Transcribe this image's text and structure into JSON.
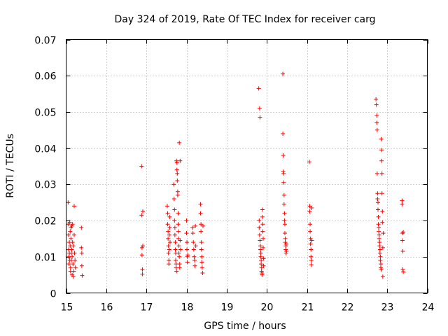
{
  "chart_data": {
    "type": "scatter",
    "title": "Day 324 of 2019, Rate Of TEC Index for receiver carg",
    "xlabel": "GPS time / hours",
    "ylabel": "ROTI / TECUs",
    "xlim": [
      15,
      24
    ],
    "ylim": [
      0,
      0.07
    ],
    "x_ticks": [
      15,
      16,
      17,
      18,
      19,
      20,
      21,
      22,
      23,
      24
    ],
    "x_tick_labels": [
      "15",
      "16",
      "17",
      "18",
      "19",
      "20",
      "21",
      "22",
      "23",
      "24"
    ],
    "y_ticks": [
      0,
      0.01,
      0.02,
      0.03,
      0.04,
      0.05,
      0.06,
      0.07
    ],
    "y_tick_labels": [
      "0",
      "0.01",
      "0.02",
      "0.03",
      "0.04",
      "0.05",
      "0.06",
      "0.07"
    ],
    "grid": true,
    "marker": "+",
    "color": "#ff0000",
    "series": [
      {
        "name": "ROTI",
        "points": [
          [
            15.05,
            0.025
          ],
          [
            15.05,
            0.019
          ],
          [
            15.06,
            0.016
          ],
          [
            15.06,
            0.012
          ],
          [
            15.07,
            0.01
          ],
          [
            15.07,
            0.008
          ],
          [
            15.08,
            0.014
          ],
          [
            15.08,
            0.011
          ],
          [
            15.09,
            0.009
          ],
          [
            15.09,
            0.0195
          ],
          [
            15.1,
            0.017
          ],
          [
            15.1,
            0.013
          ],
          [
            15.11,
            0.007
          ],
          [
            15.11,
            0.006
          ],
          [
            15.12,
            0.018
          ],
          [
            15.12,
            0.015
          ],
          [
            15.13,
            0.011
          ],
          [
            15.13,
            0.009
          ],
          [
            15.14,
            0.0185
          ],
          [
            15.14,
            0.012
          ],
          [
            15.15,
            0.01
          ],
          [
            15.15,
            0.005
          ],
          [
            15.16,
            0.019
          ],
          [
            15.16,
            0.014
          ],
          [
            15.17,
            0.008
          ],
          [
            15.18,
            0.0045
          ],
          [
            15.18,
            0.013
          ],
          [
            15.19,
            0.006
          ],
          [
            15.2,
            0.024
          ],
          [
            15.2,
            0.016
          ],
          [
            15.21,
            0.011
          ],
          [
            15.22,
            0.009
          ],
          [
            15.23,
            0.007
          ],
          [
            15.38,
            0.018
          ],
          [
            15.38,
            0.0125
          ],
          [
            15.39,
            0.011
          ],
          [
            15.39,
            0.0075
          ],
          [
            15.4,
            0.0048
          ],
          [
            16.88,
            0.035
          ],
          [
            16.88,
            0.0215
          ],
          [
            16.89,
            0.0125
          ],
          [
            16.89,
            0.0105
          ],
          [
            16.9,
            0.0065
          ],
          [
            16.9,
            0.0052
          ],
          [
            16.91,
            0.0225
          ],
          [
            16.91,
            0.013
          ],
          [
            17.52,
            0.024
          ],
          [
            17.53,
            0.022
          ],
          [
            17.53,
            0.019
          ],
          [
            17.54,
            0.017
          ],
          [
            17.54,
            0.015
          ],
          [
            17.55,
            0.013
          ],
          [
            17.55,
            0.011
          ],
          [
            17.56,
            0.009
          ],
          [
            17.56,
            0.008
          ],
          [
            17.57,
            0.012
          ],
          [
            17.57,
            0.016
          ],
          [
            17.58,
            0.018
          ],
          [
            17.58,
            0.021
          ],
          [
            17.59,
            0.014
          ],
          [
            17.68,
            0.03
          ],
          [
            17.69,
            0.026
          ],
          [
            17.7,
            0.023
          ],
          [
            17.7,
            0.02
          ],
          [
            17.71,
            0.018
          ],
          [
            17.71,
            0.016
          ],
          [
            17.72,
            0.014
          ],
          [
            17.72,
            0.012
          ],
          [
            17.73,
            0.011
          ],
          [
            17.73,
            0.009
          ],
          [
            17.74,
            0.008
          ],
          [
            17.74,
            0.007
          ],
          [
            17.75,
            0.006
          ],
          [
            17.75,
            0.0365
          ],
          [
            17.76,
            0.036
          ],
          [
            17.76,
            0.034
          ],
          [
            17.77,
            0.033
          ],
          [
            17.77,
            0.031
          ],
          [
            17.78,
            0.028
          ],
          [
            17.78,
            0.027
          ],
          [
            17.79,
            0.022
          ],
          [
            17.79,
            0.019
          ],
          [
            17.8,
            0.017
          ],
          [
            17.8,
            0.015
          ],
          [
            17.81,
            0.013
          ],
          [
            17.81,
            0.011
          ],
          [
            17.82,
            0.0415
          ],
          [
            17.82,
            0.01
          ],
          [
            17.83,
            0.008
          ],
          [
            17.83,
            0.007
          ],
          [
            17.84,
            0.0365
          ],
          [
            17.84,
            0.0145
          ],
          [
            17.85,
            0.012
          ],
          [
            18.0,
            0.02
          ],
          [
            18.0,
            0.0165
          ],
          [
            18.01,
            0.014
          ],
          [
            18.01,
            0.012
          ],
          [
            18.02,
            0.01
          ],
          [
            18.02,
            0.0085
          ],
          [
            18.03,
            0.0105
          ],
          [
            18.15,
            0.018
          ],
          [
            18.16,
            0.0165
          ],
          [
            18.17,
            0.014
          ],
          [
            18.18,
            0.012
          ],
          [
            18.19,
            0.01
          ],
          [
            18.2,
            0.009
          ],
          [
            18.21,
            0.0075
          ],
          [
            18.22,
            0.0185
          ],
          [
            18.23,
            0.013
          ],
          [
            18.35,
            0.0245
          ],
          [
            18.35,
            0.022
          ],
          [
            18.36,
            0.019
          ],
          [
            18.36,
            0.017
          ],
          [
            18.37,
            0.014
          ],
          [
            18.37,
            0.012
          ],
          [
            18.38,
            0.01
          ],
          [
            18.38,
            0.0085
          ],
          [
            18.39,
            0.007
          ],
          [
            18.4,
            0.0055
          ],
          [
            18.41,
            0.0185
          ],
          [
            19.8,
            0.0565
          ],
          [
            19.82,
            0.051
          ],
          [
            19.83,
            0.0485
          ],
          [
            19.81,
            0.02
          ],
          [
            19.81,
            0.018
          ],
          [
            19.82,
            0.016
          ],
          [
            19.83,
            0.0145
          ],
          [
            19.84,
            0.013
          ],
          [
            19.84,
            0.012
          ],
          [
            19.85,
            0.011
          ],
          [
            19.85,
            0.01
          ],
          [
            19.86,
            0.009
          ],
          [
            19.86,
            0.008
          ],
          [
            19.87,
            0.007
          ],
          [
            19.87,
            0.006
          ],
          [
            19.88,
            0.0055
          ],
          [
            19.88,
            0.005
          ],
          [
            19.89,
            0.023
          ],
          [
            19.89,
            0.021
          ],
          [
            19.9,
            0.019
          ],
          [
            19.9,
            0.017
          ],
          [
            19.91,
            0.015
          ],
          [
            19.91,
            0.0125
          ],
          [
            19.92,
            0.0095
          ],
          [
            19.92,
            0.0075
          ],
          [
            20.4,
            0.0605
          ],
          [
            20.4,
            0.044
          ],
          [
            20.41,
            0.038
          ],
          [
            20.41,
            0.0335
          ],
          [
            20.42,
            0.033
          ],
          [
            20.42,
            0.0305
          ],
          [
            20.43,
            0.027
          ],
          [
            20.43,
            0.0245
          ],
          [
            20.44,
            0.022
          ],
          [
            20.44,
            0.02
          ],
          [
            20.45,
            0.019
          ],
          [
            20.45,
            0.0165
          ],
          [
            20.46,
            0.015
          ],
          [
            20.46,
            0.014
          ],
          [
            20.47,
            0.013
          ],
          [
            20.47,
            0.012
          ],
          [
            20.48,
            0.011
          ],
          [
            20.48,
            0.0135
          ],
          [
            20.49,
            0.0115
          ],
          [
            21.06,
            0.0362
          ],
          [
            21.07,
            0.024
          ],
          [
            21.07,
            0.0225
          ],
          [
            21.08,
            0.019
          ],
          [
            21.08,
            0.017
          ],
          [
            21.09,
            0.015
          ],
          [
            21.09,
            0.0135
          ],
          [
            21.1,
            0.012
          ],
          [
            21.1,
            0.01
          ],
          [
            21.11,
            0.009
          ],
          [
            21.11,
            0.0078
          ],
          [
            21.12,
            0.0235
          ],
          [
            21.12,
            0.0145
          ],
          [
            22.72,
            0.0535
          ],
          [
            22.73,
            0.052
          ],
          [
            22.74,
            0.049
          ],
          [
            22.74,
            0.047
          ],
          [
            22.75,
            0.045
          ],
          [
            22.75,
            0.033
          ],
          [
            22.76,
            0.0275
          ],
          [
            22.76,
            0.026
          ],
          [
            22.77,
            0.025
          ],
          [
            22.77,
            0.023
          ],
          [
            22.78,
            0.021
          ],
          [
            22.78,
            0.019
          ],
          [
            22.79,
            0.018
          ],
          [
            22.79,
            0.017
          ],
          [
            22.8,
            0.016
          ],
          [
            22.8,
            0.015
          ],
          [
            22.81,
            0.014
          ],
          [
            22.81,
            0.013
          ],
          [
            22.82,
            0.012
          ],
          [
            22.82,
            0.011
          ],
          [
            22.83,
            0.01
          ],
          [
            22.83,
            0.009
          ],
          [
            22.84,
            0.008
          ],
          [
            22.84,
            0.007
          ],
          [
            22.85,
            0.0065
          ],
          [
            22.85,
            0.0425
          ],
          [
            22.86,
            0.0395
          ],
          [
            22.86,
            0.0365
          ],
          [
            22.87,
            0.033
          ],
          [
            22.87,
            0.0275
          ],
          [
            22.88,
            0.0225
          ],
          [
            22.88,
            0.0195
          ],
          [
            22.89,
            0.0045
          ],
          [
            22.89,
            0.0125
          ],
          [
            22.9,
            0.0165
          ],
          [
            23.37,
            0.0255
          ],
          [
            23.37,
            0.0245
          ],
          [
            23.38,
            0.0165
          ],
          [
            23.38,
            0.0145
          ],
          [
            23.39,
            0.0115
          ],
          [
            23.39,
            0.0065
          ],
          [
            23.4,
            0.0058
          ],
          [
            23.4,
            0.0168
          ]
        ]
      }
    ]
  }
}
